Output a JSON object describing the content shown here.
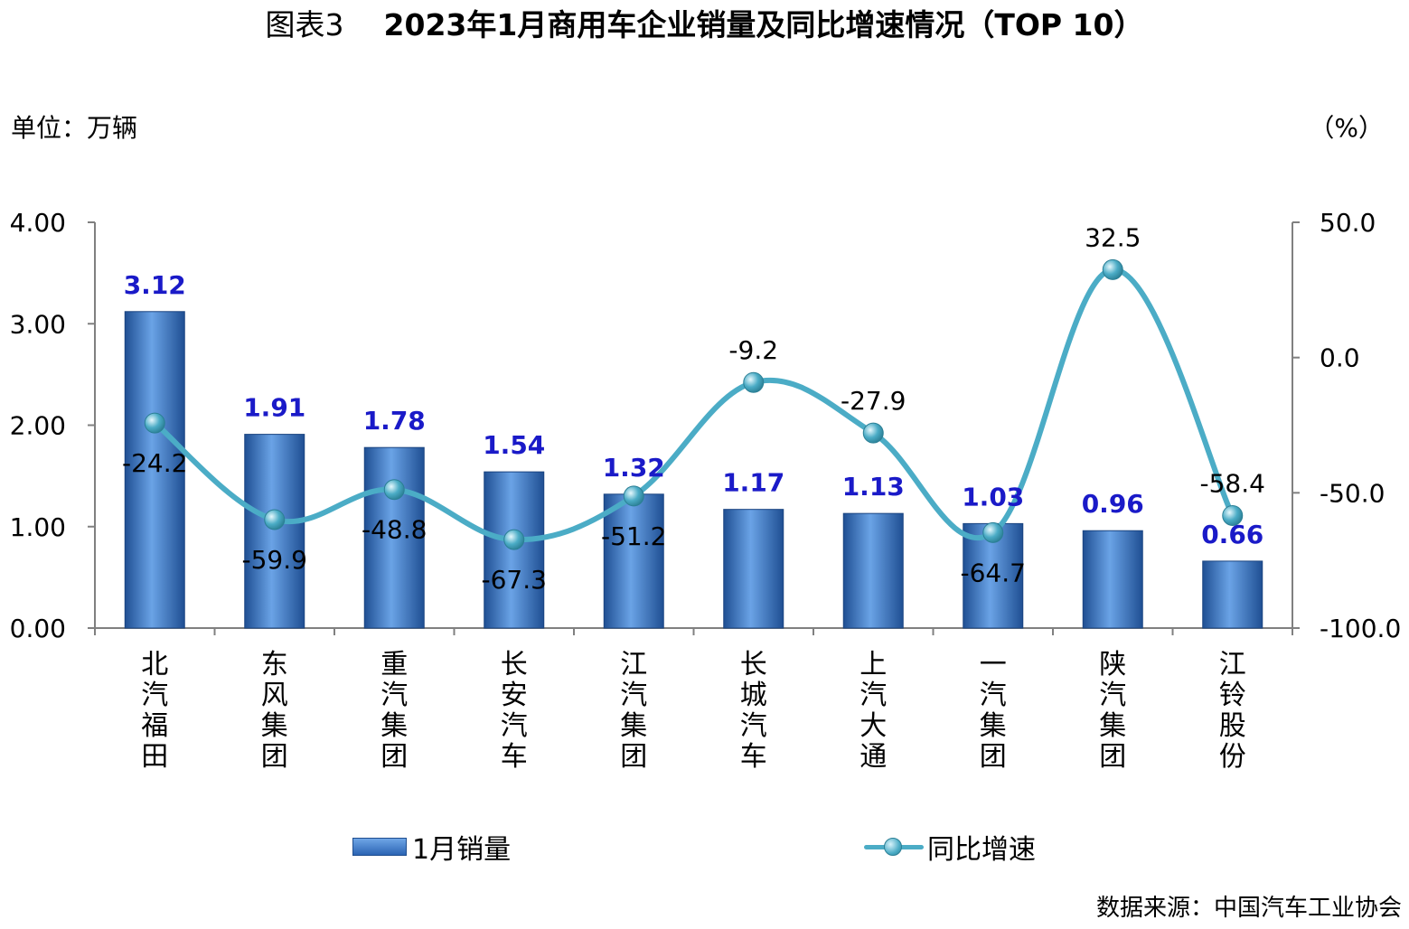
{
  "title": {
    "figure_label": "图表3",
    "main": "2023年1月商用车企业销量及同比增速情况（TOP 10）"
  },
  "unit_left": "单位：万辆",
  "unit_right": "（%）",
  "source": "数据来源：中国汽车工业协会",
  "colors": {
    "bar": "#2e6ab8",
    "bar_label": "#1a1ac8",
    "line": "#4bacc6",
    "axis": "#808080"
  },
  "chart_data": {
    "type": "bar",
    "categories": [
      "北汽福田",
      "东风集团",
      "重汽集团",
      "长安汽车",
      "江汽集团",
      "长城汽车",
      "上汽大通",
      "一汽集团",
      "陕汽集团",
      "江铃股份"
    ],
    "series": [
      {
        "name": "1月销量",
        "type": "bar",
        "axis": "left",
        "values": [
          3.12,
          1.91,
          1.78,
          1.54,
          1.32,
          1.17,
          1.13,
          1.03,
          0.96,
          0.66
        ],
        "labels": [
          "3.12",
          "1.91",
          "1.78",
          "1.54",
          "1.32",
          "1.17",
          "1.13",
          "1.03",
          "0.96",
          "0.66"
        ]
      },
      {
        "name": "同比增速",
        "type": "line",
        "axis": "right",
        "smooth": true,
        "values": [
          -24.2,
          -59.9,
          -48.8,
          -67.3,
          -51.2,
          -9.2,
          -27.9,
          -64.7,
          32.5,
          -58.4
        ],
        "labels": [
          "-24.2",
          "-59.9",
          "-48.8",
          "-67.3",
          "-51.2",
          "-9.2",
          "-27.9",
          "-64.7",
          "32.5",
          "-58.4"
        ]
      }
    ],
    "y_left": {
      "lim": [
        0,
        4
      ],
      "ticks": [
        "0.00",
        "1.00",
        "2.00",
        "3.00",
        "4.00"
      ]
    },
    "y_right": {
      "lim": [
        -100,
        50
      ],
      "ticks": [
        "-100.0",
        "-50.0",
        "0.0",
        "50.0"
      ]
    },
    "grid": false,
    "legend": "bottom"
  }
}
